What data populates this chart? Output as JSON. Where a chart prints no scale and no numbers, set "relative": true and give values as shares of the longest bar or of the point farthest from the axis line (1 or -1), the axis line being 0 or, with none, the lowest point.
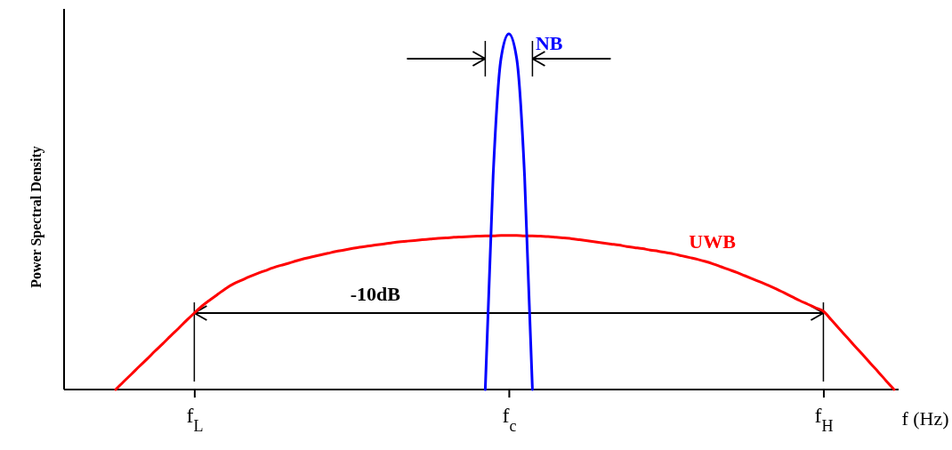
{
  "chart_data": {
    "type": "line",
    "relative": true,
    "xlabel": "f (Hz)",
    "ylabel": "Power Spectral Density",
    "categories": [
      null,
      null,
      null,
      null,
      null,
      null,
      null,
      null,
      null,
      null,
      "f$_{L}$",
      null,
      null,
      null,
      null,
      null,
      null,
      null,
      null,
      null,
      null,
      null,
      null,
      null,
      null,
      null,
      null,
      null,
      null,
      null,
      null,
      null,
      null,
      null,
      null,
      null,
      null,
      null,
      null,
      null,
      null,
      null,
      null,
      null,
      null,
      null,
      null,
      null,
      null,
      null,
      "f$_{c}$",
      null,
      null,
      null,
      null,
      null,
      null,
      null,
      null,
      null,
      null,
      null,
      null,
      null,
      null,
      null,
      null,
      null,
      null,
      null,
      null,
      null,
      null,
      null,
      null,
      null,
      null,
      null,
      null,
      null,
      null,
      null,
      null,
      null,
      null,
      null,
      null,
      null,
      null,
      null,
      "f$_{H}$",
      null,
      null,
      null,
      null,
      null,
      null,
      null,
      null,
      null
    ],
    "series": [
      {
        "name": "UWB",
        "color": "#ff0000",
        "values": [
          0,
          0.022,
          0.043,
          0.065,
          0.086,
          0.108,
          0.129,
          0.151,
          0.172,
          0.194,
          0.215,
          0.235,
          0.252,
          0.268,
          0.284,
          0.297,
          0.307,
          0.317,
          0.326,
          0.334,
          0.342,
          0.349,
          0.355,
          0.362,
          0.368,
          0.373,
          0.378,
          0.383,
          0.388,
          0.392,
          0.396,
          0.4,
          0.403,
          0.406,
          0.409,
          0.412,
          0.415,
          0.417,
          0.419,
          0.421,
          0.423,
          0.425,
          0.426,
          0.428,
          0.429,
          0.43,
          0.431,
          0.432,
          0.432,
          0.433,
          0.433,
          0.433,
          0.432,
          0.432,
          0.431,
          0.43,
          0.428,
          0.426,
          0.424,
          0.421,
          0.418,
          0.415,
          0.412,
          0.409,
          0.406,
          0.402,
          0.399,
          0.396,
          0.392,
          0.389,
          0.385,
          0.381,
          0.376,
          0.371,
          0.366,
          0.36,
          0.353,
          0.345,
          0.337,
          0.329,
          0.32,
          0.311,
          0.302,
          0.293,
          0.283,
          0.272,
          0.261,
          0.25,
          0.24,
          0.23,
          0.22,
          0.196,
          0.171,
          0.147,
          0.122,
          0.098,
          0.073,
          0.049,
          0.024,
          0
        ]
      },
      {
        "name": "NB",
        "color": "#0000ff",
        "values": [
          null,
          null,
          null,
          null,
          null,
          null,
          null,
          null,
          null,
          null,
          null,
          null,
          null,
          null,
          null,
          null,
          null,
          null,
          null,
          null,
          null,
          null,
          null,
          null,
          null,
          null,
          null,
          null,
          null,
          null,
          null,
          null,
          null,
          null,
          null,
          null,
          null,
          null,
          null,
          null,
          null,
          null,
          null,
          null,
          null,
          null,
          null,
          0,
          0.6,
          0.93,
          1,
          0.93,
          0.6,
          0,
          null,
          null,
          null,
          null,
          null,
          null,
          null,
          null,
          null,
          null,
          null,
          null,
          null,
          null,
          null,
          null,
          null,
          null,
          null,
          null,
          null,
          null,
          null,
          null,
          null,
          null,
          null,
          null,
          null,
          null,
          null,
          null,
          null,
          null,
          null,
          null,
          null,
          null,
          null,
          null,
          null,
          null,
          null,
          null,
          null,
          null
        ]
      }
    ],
    "annotations": [
      "-10dB"
    ]
  }
}
